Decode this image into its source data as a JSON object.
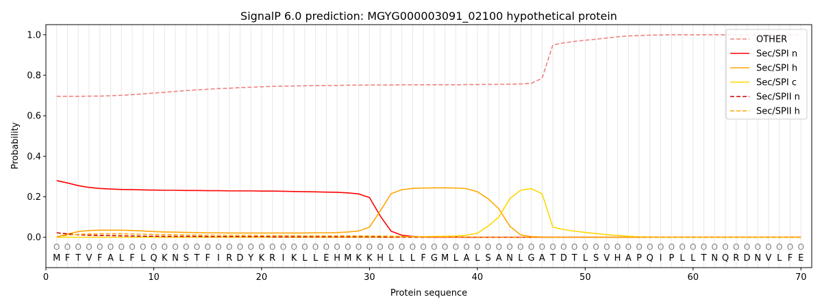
{
  "chart_data": {
    "type": "line",
    "title": "SignalP 6.0 prediction: MGYG000003091_02100 hypothetical protein",
    "xlabel": "Protein sequence",
    "ylabel": "Probability",
    "xlim": [
      0,
      71
    ],
    "ylim": [
      -0.15,
      1.05
    ],
    "xticks": [
      0,
      10,
      20,
      30,
      40,
      50,
      60,
      70
    ],
    "yticks": [
      0.0,
      0.2,
      0.4,
      0.6,
      0.8,
      1.0
    ],
    "ytick_labels": [
      "0.0",
      "0.2",
      "0.4",
      "0.6",
      "0.8",
      "1.0"
    ],
    "legend_position": "top-right",
    "grid": "vertical lines at each residue",
    "sequence": [
      "M",
      "F",
      "T",
      "V",
      "F",
      "A",
      "L",
      "F",
      "L",
      "Q",
      "K",
      "N",
      "S",
      "T",
      "F",
      "I",
      "R",
      "D",
      "Y",
      "K",
      "R",
      "I",
      "K",
      "L",
      "L",
      "E",
      "H",
      "M",
      "K",
      "K",
      "H",
      "L",
      "L",
      "L",
      "F",
      "G",
      "M",
      "L",
      "A",
      "L",
      "S",
      "A",
      "N",
      "L",
      "G",
      "A",
      "T",
      "D",
      "T",
      "L",
      "S",
      "V",
      "H",
      "A",
      "P",
      "Q",
      "I",
      "P",
      "L",
      "L",
      "T",
      "N",
      "Q",
      "R",
      "D",
      "N",
      "V",
      "L",
      "F",
      "E"
    ],
    "residue_marker": "O",
    "x": [
      1,
      2,
      3,
      4,
      5,
      6,
      7,
      8,
      9,
      10,
      11,
      12,
      13,
      14,
      15,
      16,
      17,
      18,
      19,
      20,
      21,
      22,
      23,
      24,
      25,
      26,
      27,
      28,
      29,
      30,
      31,
      32,
      33,
      34,
      35,
      36,
      37,
      38,
      39,
      40,
      41,
      42,
      43,
      44,
      45,
      46,
      47,
      48,
      49,
      50,
      51,
      52,
      53,
      54,
      55,
      56,
      57,
      58,
      59,
      60,
      61,
      62,
      63,
      64,
      65,
      66,
      67,
      68,
      69,
      70
    ],
    "series": [
      {
        "name": "OTHER",
        "color": "#f08080",
        "dash": "dashed",
        "values": [
          0.696,
          0.696,
          0.696,
          0.697,
          0.697,
          0.699,
          0.701,
          0.704,
          0.708,
          0.712,
          0.716,
          0.72,
          0.724,
          0.728,
          0.731,
          0.734,
          0.736,
          0.739,
          0.741,
          0.743,
          0.745,
          0.746,
          0.747,
          0.748,
          0.749,
          0.749,
          0.75,
          0.751,
          0.751,
          0.752,
          0.752,
          0.752,
          0.753,
          0.753,
          0.753,
          0.753,
          0.753,
          0.753,
          0.754,
          0.754,
          0.755,
          0.755,
          0.756,
          0.757,
          0.76,
          0.785,
          0.95,
          0.96,
          0.967,
          0.973,
          0.978,
          0.984,
          0.99,
          0.994,
          0.996,
          0.998,
          0.999,
          1.0,
          1.0,
          1.0,
          1.0,
          1.0,
          1.0,
          1.0,
          1.0,
          1.0,
          1.0,
          1.0,
          1.0,
          1.0
        ]
      },
      {
        "name": "Sec/SPI n",
        "color": "#ff0000",
        "dash": "solid",
        "values": [
          0.28,
          0.268,
          0.255,
          0.246,
          0.241,
          0.238,
          0.236,
          0.235,
          0.234,
          0.233,
          0.232,
          0.232,
          0.231,
          0.231,
          0.23,
          0.23,
          0.229,
          0.229,
          0.229,
          0.228,
          0.228,
          0.227,
          0.226,
          0.225,
          0.224,
          0.223,
          0.222,
          0.219,
          0.214,
          0.196,
          0.105,
          0.03,
          0.01,
          0.004,
          0.002,
          0.001,
          0.001,
          0.001,
          0.0,
          0.0,
          0.0,
          0.0,
          0.0,
          0.0,
          0.0,
          0.0,
          0.0,
          0.0,
          0.0,
          0.0,
          0.0,
          0.0,
          0.0,
          0.0,
          0.0,
          0.0,
          0.0,
          0.0,
          0.0,
          0.0,
          0.0,
          0.0,
          0.0,
          0.0,
          0.0,
          0.0,
          0.0,
          0.0,
          0.0,
          0.0
        ]
      },
      {
        "name": "Sec/SPI h",
        "color": "#ffa500",
        "dash": "solid",
        "values": [
          0.002,
          0.015,
          0.028,
          0.033,
          0.035,
          0.035,
          0.035,
          0.033,
          0.031,
          0.028,
          0.026,
          0.025,
          0.024,
          0.023,
          0.022,
          0.022,
          0.021,
          0.021,
          0.021,
          0.021,
          0.021,
          0.021,
          0.021,
          0.021,
          0.022,
          0.022,
          0.023,
          0.026,
          0.031,
          0.05,
          0.13,
          0.215,
          0.235,
          0.241,
          0.243,
          0.244,
          0.244,
          0.243,
          0.24,
          0.225,
          0.19,
          0.14,
          0.055,
          0.012,
          0.003,
          0.001,
          0.0,
          0.0,
          0.0,
          0.0,
          0.0,
          0.0,
          0.0,
          0.0,
          0.0,
          0.0,
          0.0,
          0.0,
          0.0,
          0.0,
          0.0,
          0.0,
          0.0,
          0.0,
          0.0,
          0.0,
          0.0,
          0.0,
          0.0,
          0.0
        ]
      },
      {
        "name": "Sec/SPI c",
        "color": "#ffd700",
        "dash": "solid",
        "values": [
          0.0,
          0.0,
          0.0,
          0.0,
          0.0,
          0.0,
          0.0,
          0.0,
          0.0,
          0.0,
          0.0,
          0.0,
          0.0,
          0.0,
          0.0,
          0.0,
          0.0,
          0.0,
          0.0,
          0.0,
          0.0,
          0.0,
          0.0,
          0.0,
          0.0,
          0.0,
          0.0,
          0.0,
          0.0,
          0.0,
          0.0,
          0.0,
          0.001,
          0.002,
          0.003,
          0.004,
          0.005,
          0.006,
          0.01,
          0.02,
          0.055,
          0.1,
          0.19,
          0.232,
          0.24,
          0.215,
          0.05,
          0.038,
          0.03,
          0.024,
          0.018,
          0.013,
          0.009,
          0.005,
          0.002,
          0.001,
          0.0,
          0.0,
          0.0,
          0.0,
          0.0,
          0.0,
          0.0,
          0.0,
          0.0,
          0.0,
          0.0,
          0.0,
          0.0,
          0.0
        ]
      },
      {
        "name": "Sec/SPII n",
        "color": "#cc0000",
        "dash": "dashed",
        "values": [
          0.022,
          0.017,
          0.012,
          0.01,
          0.009,
          0.008,
          0.007,
          0.006,
          0.005,
          0.005,
          0.004,
          0.004,
          0.004,
          0.004,
          0.003,
          0.003,
          0.003,
          0.003,
          0.003,
          0.003,
          0.002,
          0.002,
          0.002,
          0.002,
          0.002,
          0.002,
          0.002,
          0.002,
          0.002,
          0.002,
          0.001,
          0.001,
          0.001,
          0.0,
          0.0,
          0.0,
          0.0,
          0.0,
          0.0,
          0.0,
          0.0,
          0.0,
          0.0,
          0.0,
          0.0,
          0.0,
          0.0,
          0.0,
          0.0,
          0.0,
          0.0,
          0.0,
          0.0,
          0.0,
          0.0,
          0.0,
          0.0,
          0.0,
          0.0,
          0.0,
          0.0,
          0.0,
          0.0,
          0.0,
          0.0,
          0.0,
          0.0,
          0.0,
          0.0,
          0.0
        ]
      },
      {
        "name": "Sec/SPII h",
        "color": "#ffa500",
        "dash": "dashed",
        "values": [
          0.002,
          0.01,
          0.014,
          0.016,
          0.017,
          0.017,
          0.017,
          0.016,
          0.015,
          0.014,
          0.013,
          0.012,
          0.011,
          0.011,
          0.01,
          0.01,
          0.009,
          0.009,
          0.009,
          0.008,
          0.008,
          0.008,
          0.008,
          0.007,
          0.007,
          0.007,
          0.007,
          0.007,
          0.006,
          0.006,
          0.006,
          0.005,
          0.004,
          0.003,
          0.002,
          0.002,
          0.001,
          0.001,
          0.001,
          0.001,
          0.0,
          0.0,
          0.0,
          0.0,
          0.0,
          0.0,
          0.0,
          0.0,
          0.0,
          0.0,
          0.0,
          0.0,
          0.0,
          0.0,
          0.0,
          0.0,
          0.0,
          0.0,
          0.0,
          0.0,
          0.0,
          0.0,
          0.0,
          0.0,
          0.0,
          0.0,
          0.0,
          0.0,
          0.0,
          0.0
        ]
      }
    ]
  }
}
